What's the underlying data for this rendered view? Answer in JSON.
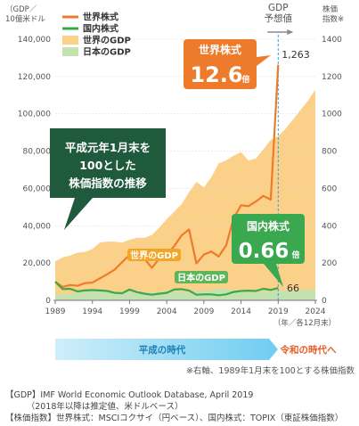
{
  "chart_data": {
    "type": "line",
    "left_axis_unit": "（GDP／\n10億米ドル",
    "right_axis_unit": "株価\n指数※",
    "x_ticks": [
      1989,
      1994,
      1999,
      2004,
      2009,
      2014,
      2019,
      2024
    ],
    "x_unit": "（年／各12月末）",
    "left_ticks": [
      "0",
      "20,000",
      "40,000",
      "60,000",
      "80,000",
      "100,000",
      "120,000",
      "140,000"
    ],
    "right_ticks": [
      "0",
      "200",
      "400",
      "600",
      "800",
      "1000",
      "1200",
      "1400"
    ],
    "left_range": [
      0,
      140000
    ],
    "right_range": [
      0,
      1400
    ],
    "x_range": [
      1989,
      2024
    ],
    "forecast_start": 2019,
    "forecast_label": "GDP\n予想値",
    "legend": [
      {
        "label": "世界株式",
        "color": "#ee7b2b",
        "kind": "line"
      },
      {
        "label": "国内株式",
        "color": "#3aa84e",
        "kind": "line"
      },
      {
        "label": "世界のGDP",
        "color": "#fbd089",
        "kind": "area"
      },
      {
        "label": "日本のGDP",
        "color": "#c4e2b0",
        "kind": "area"
      }
    ],
    "series": [
      {
        "name": "世界株式",
        "axis": "right",
        "color": "#ee7b2b",
        "points": [
          [
            1989,
            100
          ],
          [
            1990,
            72
          ],
          [
            1991,
            82
          ],
          [
            1992,
            78
          ],
          [
            1993,
            92
          ],
          [
            1994,
            95
          ],
          [
            1995,
            118
          ],
          [
            1996,
            140
          ],
          [
            1997,
            165
          ],
          [
            1998,
            205
          ],
          [
            1999,
            243
          ],
          [
            2000,
            240
          ],
          [
            2001,
            222
          ],
          [
            2002,
            175
          ],
          [
            2003,
            223
          ],
          [
            2004,
            245
          ],
          [
            2005,
            290
          ],
          [
            2006,
            348
          ],
          [
            2007,
            380
          ],
          [
            2008,
            198
          ],
          [
            2009,
            245
          ],
          [
            2010,
            262
          ],
          [
            2011,
            235
          ],
          [
            2012,
            295
          ],
          [
            2013,
            440
          ],
          [
            2014,
            510
          ],
          [
            2015,
            505
          ],
          [
            2016,
            530
          ],
          [
            2017,
            560
          ],
          [
            2018,
            540
          ],
          [
            2019,
            1263
          ]
        ]
      },
      {
        "name": "国内株式",
        "axis": "right",
        "color": "#3aa84e",
        "points": [
          [
            1989,
            100
          ],
          [
            1990,
            60
          ],
          [
            1991,
            62
          ],
          [
            1992,
            48
          ],
          [
            1993,
            53
          ],
          [
            1994,
            55
          ],
          [
            1995,
            53
          ],
          [
            1996,
            50
          ],
          [
            1997,
            40
          ],
          [
            1998,
            38
          ],
          [
            1999,
            58
          ],
          [
            2000,
            44
          ],
          [
            2001,
            36
          ],
          [
            2002,
            30
          ],
          [
            2003,
            36
          ],
          [
            2004,
            40
          ],
          [
            2005,
            58
          ],
          [
            2006,
            60
          ],
          [
            2007,
            52
          ],
          [
            2008,
            30
          ],
          [
            2009,
            32
          ],
          [
            2010,
            32
          ],
          [
            2011,
            27
          ],
          [
            2012,
            32
          ],
          [
            2013,
            45
          ],
          [
            2014,
            50
          ],
          [
            2015,
            52
          ],
          [
            2016,
            50
          ],
          [
            2017,
            62
          ],
          [
            2018,
            56
          ],
          [
            2019,
            66
          ]
        ]
      },
      {
        "name": "世界のGDP",
        "axis": "left",
        "color": "#fbd089",
        "points": [
          [
            1989,
            21000
          ],
          [
            1990,
            23000
          ],
          [
            1991,
            24000
          ],
          [
            1992,
            25500
          ],
          [
            1993,
            26000
          ],
          [
            1994,
            27500
          ],
          [
            1995,
            31000
          ],
          [
            1996,
            31500
          ],
          [
            1997,
            31500
          ],
          [
            1998,
            31000
          ],
          [
            1999,
            32500
          ],
          [
            2000,
            33500
          ],
          [
            2001,
            33500
          ],
          [
            2002,
            35000
          ],
          [
            2003,
            39000
          ],
          [
            2004,
            43500
          ],
          [
            2005,
            47500
          ],
          [
            2006,
            51500
          ],
          [
            2007,
            58000
          ],
          [
            2008,
            63500
          ],
          [
            2009,
            60500
          ],
          [
            2010,
            66000
          ],
          [
            2011,
            73500
          ],
          [
            2012,
            75000
          ],
          [
            2013,
            77500
          ],
          [
            2014,
            79500
          ],
          [
            2015,
            75000
          ],
          [
            2016,
            76000
          ],
          [
            2017,
            81000
          ],
          [
            2018,
            86000
          ],
          [
            2019,
            88000
          ],
          [
            2020,
            92000
          ],
          [
            2021,
            97000
          ],
          [
            2022,
            102000
          ],
          [
            2023,
            107000
          ],
          [
            2024,
            113000
          ]
        ]
      },
      {
        "name": "日本のGDP",
        "axis": "left",
        "color": "#c4e2b0",
        "points": [
          [
            1989,
            3050
          ],
          [
            1990,
            3130
          ],
          [
            1991,
            3580
          ],
          [
            1992,
            3900
          ],
          [
            1993,
            4470
          ],
          [
            1994,
            4910
          ],
          [
            1995,
            5450
          ],
          [
            1996,
            4830
          ],
          [
            1997,
            4410
          ],
          [
            1998,
            4030
          ],
          [
            1999,
            4560
          ],
          [
            2000,
            4890
          ],
          [
            2001,
            4300
          ],
          [
            2002,
            4120
          ],
          [
            2003,
            4440
          ],
          [
            2004,
            4810
          ],
          [
            2005,
            4760
          ],
          [
            2006,
            4530
          ],
          [
            2007,
            4520
          ],
          [
            2008,
            5040
          ],
          [
            2009,
            5230
          ],
          [
            2010,
            5700
          ],
          [
            2011,
            6160
          ],
          [
            2012,
            6200
          ],
          [
            2013,
            5160
          ],
          [
            2014,
            4850
          ],
          [
            2015,
            4390
          ],
          [
            2016,
            4930
          ],
          [
            2017,
            4860
          ],
          [
            2018,
            4970
          ],
          [
            2019,
            5150
          ],
          [
            2020,
            5300
          ],
          [
            2021,
            5450
          ],
          [
            2022,
            5600
          ],
          [
            2023,
            5750
          ],
          [
            2024,
            5900
          ]
        ]
      }
    ],
    "callouts": {
      "world_stock_title": "世界株式",
      "world_stock_value": "12.6",
      "world_stock_unit": "倍",
      "world_stock_end_value": "1,263",
      "domestic_stock_title": "国内株式",
      "domestic_stock_value": "0.66",
      "domestic_stock_unit": "倍",
      "domestic_stock_end_value": "66",
      "index_note": "平成元年1月末を\n100とした\n株価指数の推移",
      "world_gdp_label": "世界のGDP",
      "japan_gdp_label": "日本のGDP"
    },
    "eras": {
      "heisei": "平成の時代",
      "reiwa": "令和の時代へ"
    },
    "axis_note": "※右軸、1989年1月末を100とする株価指数"
  },
  "footer": [
    "【GDP】IMF World Economic Outlook Database, April 2019",
    "　　　（2018年以降は推定値、米ドルベース）",
    "【株価指数】世界株式：MSCIコクサイ（円ベース）、国内株式：TOPIX（東証株価指数）"
  ]
}
